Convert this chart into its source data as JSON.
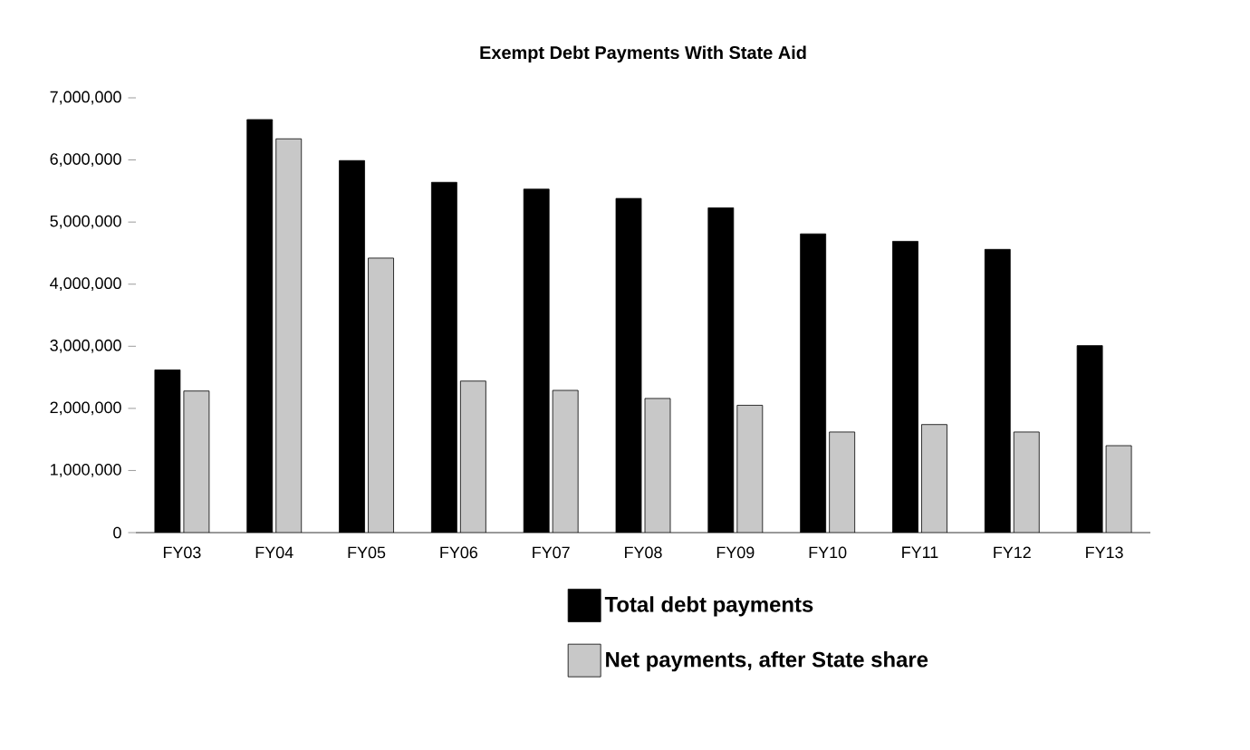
{
  "chart_data": {
    "type": "bar",
    "title": "Exempt Debt Payments With State Aid",
    "categories": [
      "FY03",
      "FY04",
      "FY05",
      "FY06",
      "FY07",
      "FY08",
      "FY09",
      "FY10",
      "FY11",
      "FY12",
      "FY13"
    ],
    "series": [
      {
        "name": "Total debt payments",
        "color": "#000000",
        "values": [
          2620000,
          6650000,
          5990000,
          5640000,
          5530000,
          5380000,
          5230000,
          4810000,
          4690000,
          4560000,
          3010000
        ]
      },
      {
        "name": "Net payments, after State share",
        "color": "#c8c8c8",
        "values": [
          2280000,
          6340000,
          4420000,
          2440000,
          2290000,
          2160000,
          2050000,
          1620000,
          1740000,
          1620000,
          1400000
        ]
      }
    ],
    "ylim": [
      0,
      7000000
    ],
    "yticks": [
      {
        "value": 0,
        "label": "0"
      },
      {
        "value": 1000000,
        "label": "1,000,000"
      },
      {
        "value": 2000000,
        "label": "2,000,000"
      },
      {
        "value": 3000000,
        "label": "3,000,000"
      },
      {
        "value": 4000000,
        "label": "4,000,000"
      },
      {
        "value": 5000000,
        "label": "5,000,000"
      },
      {
        "value": 6000000,
        "label": "6,000,000"
      },
      {
        "value": 7000000,
        "label": "7,000,000"
      }
    ],
    "legend": "bottom right"
  }
}
